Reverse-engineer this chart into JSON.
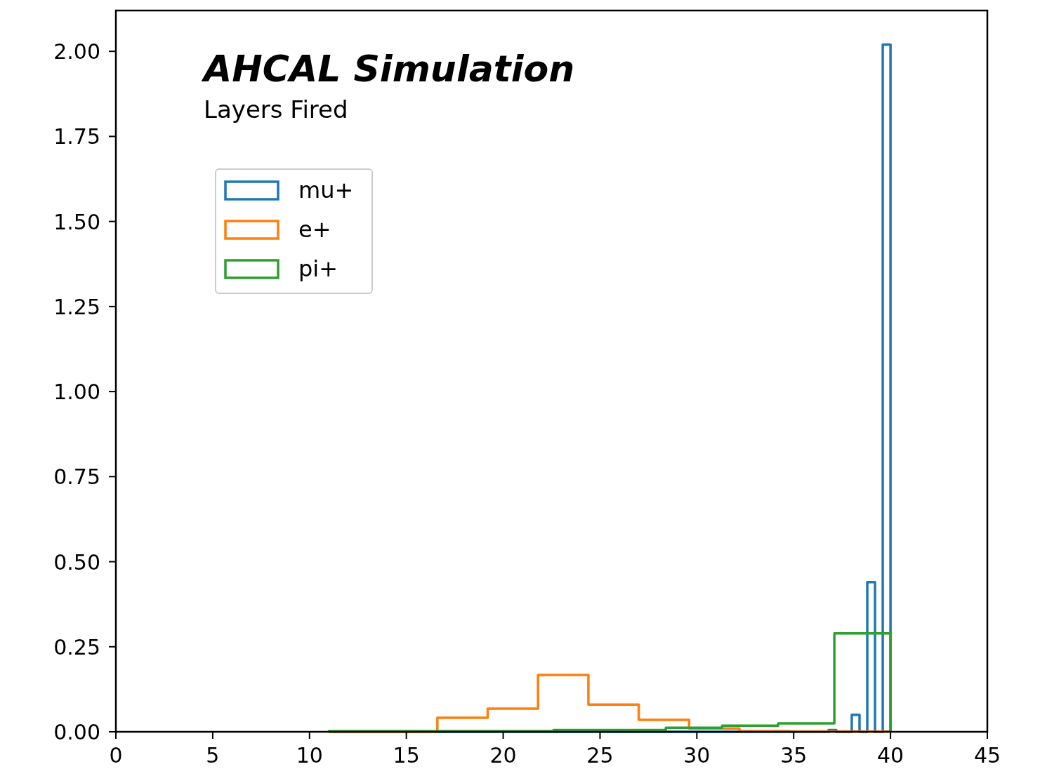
{
  "chart_data": {
    "type": "histogram",
    "title": "AHCAL Simulation",
    "subtitle": "Layers Fired",
    "xlim": [
      0,
      45
    ],
    "xticks": [
      0,
      5,
      10,
      15,
      20,
      25,
      30,
      35,
      40,
      45
    ],
    "ylim": [
      0,
      2.12
    ],
    "yticks": [
      {
        "value": 0,
        "label": "0.00"
      },
      {
        "value": 0.25,
        "label": "0.25"
      },
      {
        "value": 0.5,
        "label": "0.50"
      },
      {
        "value": 0.75,
        "label": "0.75"
      },
      {
        "value": 1,
        "label": "1.00"
      },
      {
        "value": 1.25,
        "label": "1.25"
      },
      {
        "value": 1.5,
        "label": "1.50"
      },
      {
        "value": 1.75,
        "label": "1.75"
      },
      {
        "value": 2,
        "label": "2.00"
      }
    ],
    "legend": "top left",
    "bins": [
      11,
      13.9,
      16.6,
      16.8,
      19.2,
      19.7,
      21.8,
      22.6,
      24.4,
      25.5,
      27,
      28.4,
      29.6,
      31.3,
      32.2,
      34.2,
      34.8,
      36.8,
      37.1,
      37.2,
      37.4,
      37.6,
      38,
      38.4,
      38.8,
      39.2,
      39.6,
      40
    ],
    "series": [
      {
        "name": "mu+",
        "color": "#1f77b4",
        "values": [
          0,
          0,
          0,
          0,
          0,
          0,
          0,
          0,
          0,
          0,
          0,
          0,
          0,
          0,
          0,
          0,
          0,
          0.005,
          0.005,
          0,
          0,
          0,
          0.05,
          0,
          0.44,
          0,
          2.02
        ]
      },
      {
        "name": "e+",
        "color": "#ff7f0e",
        "values": [
          0,
          0,
          0.041,
          0.041,
          0.068,
          0.068,
          0.167,
          0.167,
          0.08,
          0.08,
          0.035,
          0.035,
          0.01,
          0.01,
          0.002,
          0.002,
          0.001,
          0.001,
          0.001,
          0.001,
          0.001,
          0.001,
          0.001,
          0.001,
          0.001,
          0.001,
          0.001
        ]
      },
      {
        "name": "pi+",
        "color": "#2ca02c",
        "values": [
          0.002,
          0.002,
          0.002,
          0.002,
          0.002,
          0.002,
          0.002,
          0.005,
          0.005,
          0.005,
          0.005,
          0.012,
          0.012,
          0.018,
          0.018,
          0.025,
          0.025,
          0.025,
          0.289,
          0.289,
          0.289,
          0.289,
          0.289,
          0.289,
          0.289,
          0.289,
          0.289
        ]
      }
    ]
  }
}
